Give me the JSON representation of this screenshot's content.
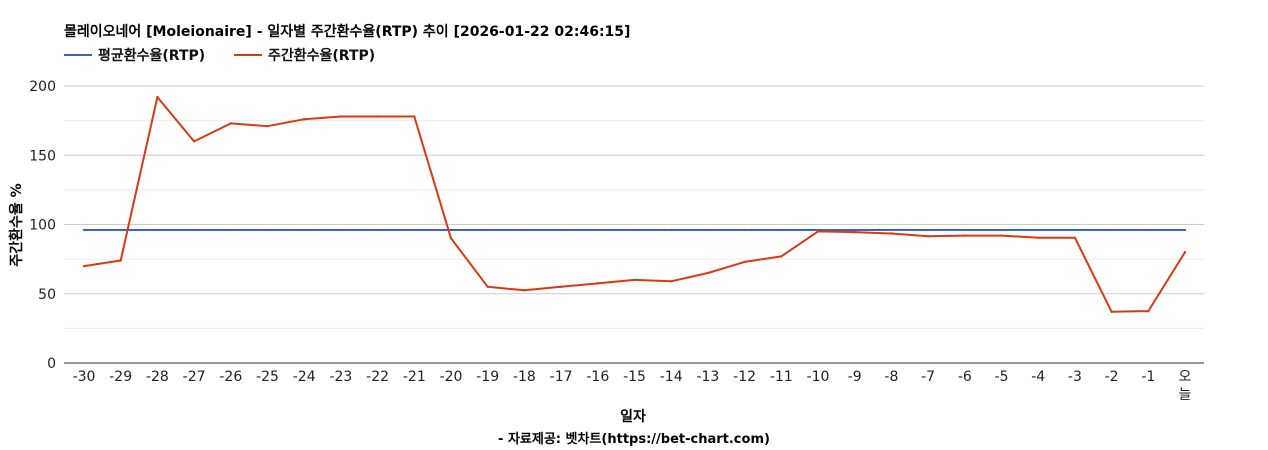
{
  "title": "몰레이오네어 [Moleionaire] - 일자별 주간환수율(RTP) 추이 [2026-01-22 02:46:15]",
  "source": "- 자료제공: 벳차트(https://bet-chart.com)",
  "chart_data": {
    "type": "line",
    "title": "몰레이오네어 [Moleionaire] - 일자별 주간환수율(RTP) 추이 [2026-01-22 02:46:15]",
    "xlabel": "일자",
    "ylabel": "주간환수율 %",
    "ylim": [
      0,
      200
    ],
    "yticks": [
      "0",
      "50",
      "100",
      "150",
      "200"
    ],
    "grid": true,
    "legend_position": "top-left",
    "categories": [
      "-30",
      "-29",
      "-28",
      "-27",
      "-26",
      "-25",
      "-24",
      "-23",
      "-22",
      "-21",
      "-20",
      "-19",
      "-18",
      "-17",
      "-16",
      "-15",
      "-14",
      "-13",
      "-12",
      "-11",
      "-10",
      "-9",
      "-8",
      "-7",
      "-6",
      "-5",
      "-4",
      "-3",
      "-2",
      "-1",
      "오늘"
    ],
    "series": [
      {
        "name": "평균환수율(RTP)",
        "color": "#3366cc",
        "values": [
          96,
          96,
          96,
          96,
          96,
          96,
          96,
          96,
          96,
          96,
          96,
          96,
          96,
          96,
          96,
          96,
          96,
          96,
          96,
          96,
          96,
          96,
          96,
          96,
          96,
          96,
          96,
          96,
          96,
          96,
          96
        ]
      },
      {
        "name": "주간환수율(RTP)",
        "color": "#dc3912",
        "values": [
          70,
          74,
          192,
          160,
          173,
          171,
          176,
          178,
          178,
          178,
          90,
          55,
          52.5,
          55,
          57.5,
          60,
          59,
          65,
          73,
          77,
          95,
          94.5,
          93.5,
          91.5,
          92,
          92,
          90.5,
          90.5,
          37,
          37.5,
          80
        ]
      }
    ]
  }
}
